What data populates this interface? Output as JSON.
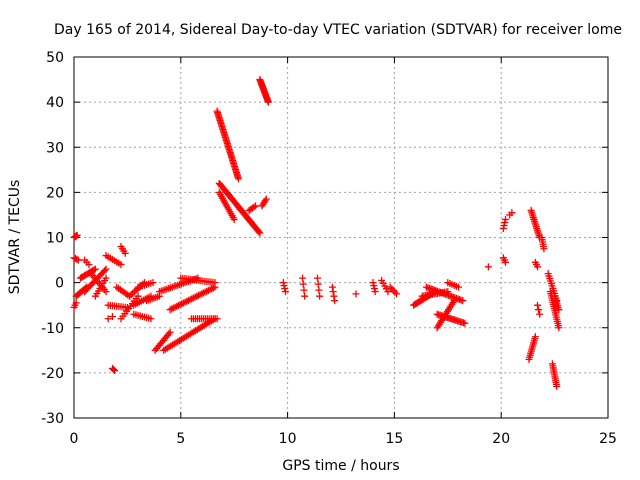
{
  "chart_data": {
    "type": "scatter",
    "title": "Day 165 of 2014, Sidereal Day-to-day VTEC variation (SDTVAR) for receiver lome",
    "xlabel": "GPS time / hours",
    "ylabel": "SDTVAR / TECUs",
    "xlim": [
      0,
      25
    ],
    "ylim": [
      -30,
      50
    ],
    "xticks": [
      0,
      5,
      10,
      15,
      20,
      25
    ],
    "yticks": [
      -30,
      -20,
      -10,
      0,
      10,
      20,
      30,
      40,
      50
    ],
    "xtick_labels": [
      "0",
      "5",
      "10",
      "15",
      "20",
      "25"
    ],
    "ytick_labels": [
      "-30",
      "-20",
      "-10",
      "0",
      "10",
      "20",
      "30",
      "40",
      "50"
    ],
    "grid": true,
    "marker": "plus",
    "color": "#ff0000",
    "segments": [
      {
        "x0": 0.0,
        "y0": 10.0,
        "x1": 0.15,
        "y1": 10.5,
        "n": 6
      },
      {
        "x0": 0.0,
        "y0": 5.5,
        "x1": 0.2,
        "y1": 5.0,
        "n": 4
      },
      {
        "x0": 0.0,
        "y0": -5.5,
        "x1": 0.1,
        "y1": -4.5,
        "n": 3
      },
      {
        "x0": 0.1,
        "y0": -3.0,
        "x1": 0.6,
        "y1": -1.0,
        "n": 10
      },
      {
        "x0": 0.3,
        "y0": 1.0,
        "x1": 1.0,
        "y1": 3.0,
        "n": 12
      },
      {
        "x0": 0.5,
        "y0": -2.0,
        "x1": 1.5,
        "y1": 3.0,
        "n": 16
      },
      {
        "x0": 0.8,
        "y0": 2.0,
        "x1": 1.5,
        "y1": -2.0,
        "n": 10
      },
      {
        "x0": 1.0,
        "y0": -3.0,
        "x1": 1.5,
        "y1": 1.0,
        "n": 8
      },
      {
        "x0": 0.5,
        "y0": 5.0,
        "x1": 0.7,
        "y1": 4.0,
        "n": 3
      },
      {
        "x0": 1.5,
        "y0": 6.0,
        "x1": 2.2,
        "y1": 4.0,
        "n": 8
      },
      {
        "x0": 2.2,
        "y0": 8.0,
        "x1": 2.4,
        "y1": 6.5,
        "n": 4
      },
      {
        "x0": 1.6,
        "y0": -5.0,
        "x1": 2.5,
        "y1": -5.5,
        "n": 10
      },
      {
        "x0": 1.6,
        "y0": -8.0,
        "x1": 1.8,
        "y1": -7.5,
        "n": 2
      },
      {
        "x0": 1.8,
        "y0": -19.0,
        "x1": 1.9,
        "y1": -19.5,
        "n": 3
      },
      {
        "x0": 2.0,
        "y0": -1.0,
        "x1": 2.6,
        "y1": -3.0,
        "n": 8
      },
      {
        "x0": 2.2,
        "y0": -8.0,
        "x1": 3.0,
        "y1": -3.0,
        "n": 10
      },
      {
        "x0": 2.6,
        "y0": -3.0,
        "x1": 3.3,
        "y1": 0.0,
        "n": 10
      },
      {
        "x0": 3.0,
        "y0": -1.0,
        "x1": 3.7,
        "y1": 0.0,
        "n": 8
      },
      {
        "x0": 2.8,
        "y0": -7.0,
        "x1": 3.6,
        "y1": -8.0,
        "n": 9
      },
      {
        "x0": 2.8,
        "y0": -5.0,
        "x1": 3.6,
        "y1": -3.0,
        "n": 10
      },
      {
        "x0": 3.4,
        "y0": -4.0,
        "x1": 4.0,
        "y1": -3.0,
        "n": 8
      },
      {
        "x0": 3.8,
        "y0": -15.0,
        "x1": 4.5,
        "y1": -11.0,
        "n": 12
      },
      {
        "x0": 4.2,
        "y0": -15.0,
        "x1": 6.6,
        "y1": -8.0,
        "n": 30
      },
      {
        "x0": 4.5,
        "y0": -6.0,
        "x1": 6.6,
        "y1": -1.0,
        "n": 28
      },
      {
        "x0": 4.0,
        "y0": -2.0,
        "x1": 5.8,
        "y1": 1.0,
        "n": 22
      },
      {
        "x0": 5.0,
        "y0": 1.0,
        "x1": 6.6,
        "y1": 0.0,
        "n": 18
      },
      {
        "x0": 5.5,
        "y0": -8.0,
        "x1": 6.7,
        "y1": -8.0,
        "n": 14
      },
      {
        "x0": 6.7,
        "y0": 38.0,
        "x1": 7.7,
        "y1": 23.0,
        "n": 45
      },
      {
        "x0": 6.8,
        "y0": 22.0,
        "x1": 8.7,
        "y1": 11.0,
        "n": 45
      },
      {
        "x0": 6.8,
        "y0": 20.0,
        "x1": 7.5,
        "y1": 14.0,
        "n": 15
      },
      {
        "x0": 8.2,
        "y0": 16.0,
        "x1": 8.5,
        "y1": 17.0,
        "n": 5
      },
      {
        "x0": 8.8,
        "y0": 17.0,
        "x1": 9.0,
        "y1": 18.5,
        "n": 5
      },
      {
        "x0": 8.7,
        "y0": 45.0,
        "x1": 9.1,
        "y1": 40.0,
        "n": 20
      },
      {
        "x0": 9.8,
        "y0": 0.0,
        "x1": 9.9,
        "y1": -2.0,
        "n": 4
      },
      {
        "x0": 10.7,
        "y0": 1.0,
        "x1": 10.8,
        "y1": -3.0,
        "n": 4
      },
      {
        "x0": 11.4,
        "y0": 1.0,
        "x1": 11.5,
        "y1": -3.0,
        "n": 4
      },
      {
        "x0": 12.1,
        "y0": -1.0,
        "x1": 12.2,
        "y1": -4.0,
        "n": 4
      },
      {
        "x0": 13.2,
        "y0": -2.5,
        "x1": 13.2,
        "y1": -2.5,
        "n": 1
      },
      {
        "x0": 14.0,
        "y0": 0.0,
        "x1": 14.1,
        "y1": -2.0,
        "n": 4
      },
      {
        "x0": 14.4,
        "y0": 0.5,
        "x1": 14.7,
        "y1": -2.0,
        "n": 5
      },
      {
        "x0": 14.8,
        "y0": -1.0,
        "x1": 15.1,
        "y1": -2.5,
        "n": 5
      },
      {
        "x0": 15.9,
        "y0": -5.0,
        "x1": 16.9,
        "y1": -2.0,
        "n": 18
      },
      {
        "x0": 16.3,
        "y0": -3.0,
        "x1": 17.5,
        "y1": -2.0,
        "n": 16
      },
      {
        "x0": 16.5,
        "y0": -1.0,
        "x1": 18.2,
        "y1": -4.0,
        "n": 24
      },
      {
        "x0": 17.0,
        "y0": -10.0,
        "x1": 17.8,
        "y1": -4.0,
        "n": 16
      },
      {
        "x0": 17.0,
        "y0": -7.0,
        "x1": 18.3,
        "y1": -9.0,
        "n": 20
      },
      {
        "x0": 17.5,
        "y0": 0.0,
        "x1": 18.0,
        "y1": -1.0,
        "n": 6
      },
      {
        "x0": 19.4,
        "y0": 3.5,
        "x1": 19.4,
        "y1": 3.5,
        "n": 1
      },
      {
        "x0": 20.1,
        "y0": 12.0,
        "x1": 20.2,
        "y1": 14.0,
        "n": 4
      },
      {
        "x0": 20.1,
        "y0": 5.5,
        "x1": 20.2,
        "y1": 4.5,
        "n": 3
      },
      {
        "x0": 20.4,
        "y0": 15.0,
        "x1": 20.5,
        "y1": 15.5,
        "n": 2
      },
      {
        "x0": 21.4,
        "y0": 16.0,
        "x1": 21.8,
        "y1": 10.0,
        "n": 16
      },
      {
        "x0": 21.9,
        "y0": 10.0,
        "x1": 22.0,
        "y1": 7.5,
        "n": 6
      },
      {
        "x0": 21.6,
        "y0": 4.5,
        "x1": 21.7,
        "y1": 3.5,
        "n": 3
      },
      {
        "x0": 21.3,
        "y0": -17.0,
        "x1": 21.6,
        "y1": -12.0,
        "n": 12
      },
      {
        "x0": 21.7,
        "y0": -5.0,
        "x1": 21.8,
        "y1": -7.0,
        "n": 3
      },
      {
        "x0": 22.2,
        "y0": 2.0,
        "x1": 22.6,
        "y1": -4.0,
        "n": 12
      },
      {
        "x0": 22.3,
        "y0": -2.0,
        "x1": 22.7,
        "y1": -10.0,
        "n": 18
      },
      {
        "x0": 22.5,
        "y0": -3.0,
        "x1": 22.7,
        "y1": -6.0,
        "n": 8
      },
      {
        "x0": 22.4,
        "y0": -18.0,
        "x1": 22.6,
        "y1": -23.0,
        "n": 12
      }
    ]
  }
}
